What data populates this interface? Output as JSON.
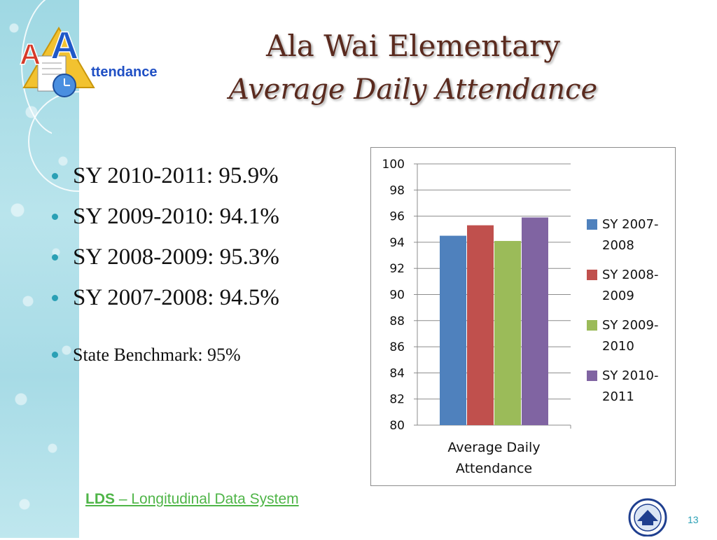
{
  "logo": {
    "text": "ttendance",
    "letters": [
      "A",
      "A"
    ]
  },
  "title": {
    "line1": "Ala Wai Elementary",
    "line2": "Average Daily Attendance"
  },
  "bullets": [
    "SY 2010-2011: 95.9%",
    "SY 2009-2010: 94.1%",
    "SY 2008-2009: 95.3%",
    "SY 2007-2008: 94.5%"
  ],
  "benchmark": "State Benchmark: 95%",
  "footer": {
    "lds_bold": "LDS",
    "lds_rest": " – Longitudinal Data System",
    "page_number": "13"
  },
  "chart_data": {
    "type": "bar",
    "categories": [
      "Average Daily Attendance"
    ],
    "category_label_lines": [
      "Average Daily",
      "Attendance"
    ],
    "series": [
      {
        "name": "SY 2007-2008",
        "legend_lines": [
          "SY 2007-",
          "2008"
        ],
        "values": [
          94.5
        ],
        "color": "#4f81bd"
      },
      {
        "name": "SY 2008-2009",
        "legend_lines": [
          "SY 2008-",
          "2009"
        ],
        "values": [
          95.3
        ],
        "color": "#c0504d"
      },
      {
        "name": "SY 2009-2010",
        "legend_lines": [
          "SY 2009-",
          "2010"
        ],
        "values": [
          94.1
        ],
        "color": "#9bbb59"
      },
      {
        "name": "SY 2010-2011",
        "legend_lines": [
          "SY 2010-",
          "2011"
        ],
        "values": [
          95.9
        ],
        "color": "#8064a2"
      }
    ],
    "ylim": [
      80,
      100
    ],
    "yticks": [
      "80",
      "82",
      "84",
      "86",
      "88",
      "90",
      "92",
      "94",
      "96",
      "98",
      "100"
    ],
    "grid": true,
    "legend": "right"
  }
}
